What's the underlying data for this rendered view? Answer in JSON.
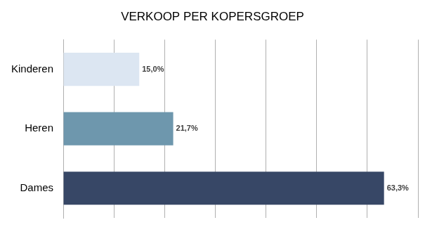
{
  "chart_data": {
    "type": "bar",
    "orientation": "horizontal",
    "title": "VERKOOP PER KOPERSGROEP",
    "categories": [
      "Kinderen",
      "Heren",
      "Dames"
    ],
    "values": [
      15.0,
      21.7,
      63.3
    ],
    "value_labels": [
      "15,0%",
      "21,7%",
      "63,3%"
    ],
    "colors": [
      "#dce6f2",
      "#6e97ad",
      "#374766"
    ],
    "xlim": [
      0,
      70
    ],
    "xticks": [
      0,
      10,
      20,
      30,
      40,
      50,
      60,
      70
    ],
    "grid": true,
    "data_labels": true,
    "tick_labels": "y"
  }
}
